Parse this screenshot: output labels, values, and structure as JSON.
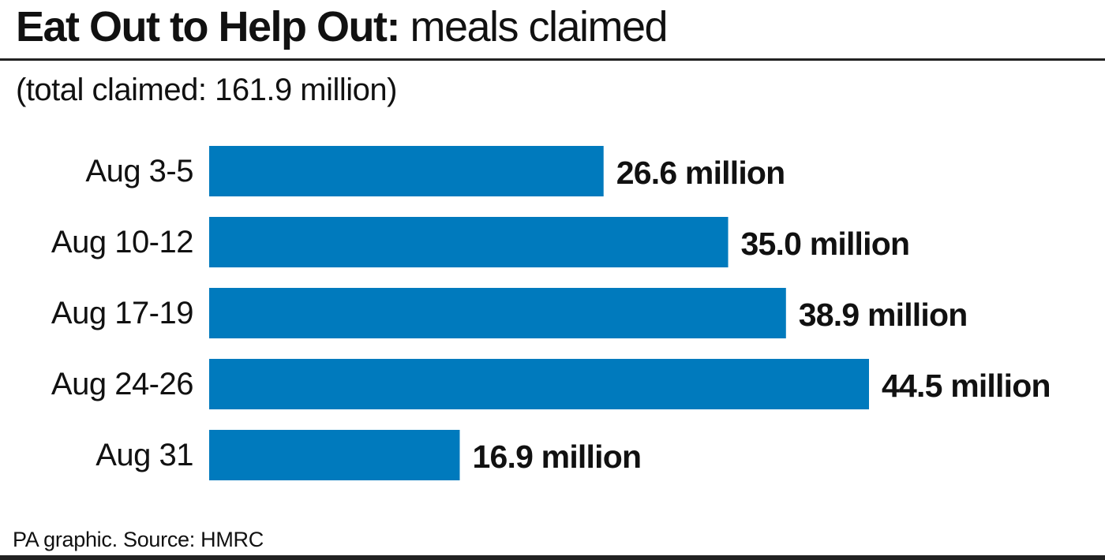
{
  "header": {
    "title_bold": "Eat Out to Help Out:",
    "title_light": "meals claimed",
    "subtitle": "(total claimed: 161.9 million)"
  },
  "footer": {
    "source": "PA graphic. Source: HMRC"
  },
  "colors": {
    "bar": "#007abd",
    "text": "#111111"
  },
  "chart_data": {
    "type": "bar",
    "orientation": "horizontal",
    "title": "Eat Out to Help Out: meals claimed",
    "subtitle": "(total claimed: 161.9 million)",
    "categories": [
      "Aug 3-5",
      "Aug 10-12",
      "Aug 17-19",
      "Aug 24-26",
      "Aug 31"
    ],
    "values": [
      26.6,
      35.0,
      38.9,
      44.5,
      16.9
    ],
    "value_labels": [
      "26.6 million",
      "35.0 million",
      "38.9 million",
      "44.5 million",
      "16.9 million"
    ],
    "unit": "million",
    "xlim": [
      0,
      44.5
    ],
    "grid": false,
    "legend": "none"
  }
}
